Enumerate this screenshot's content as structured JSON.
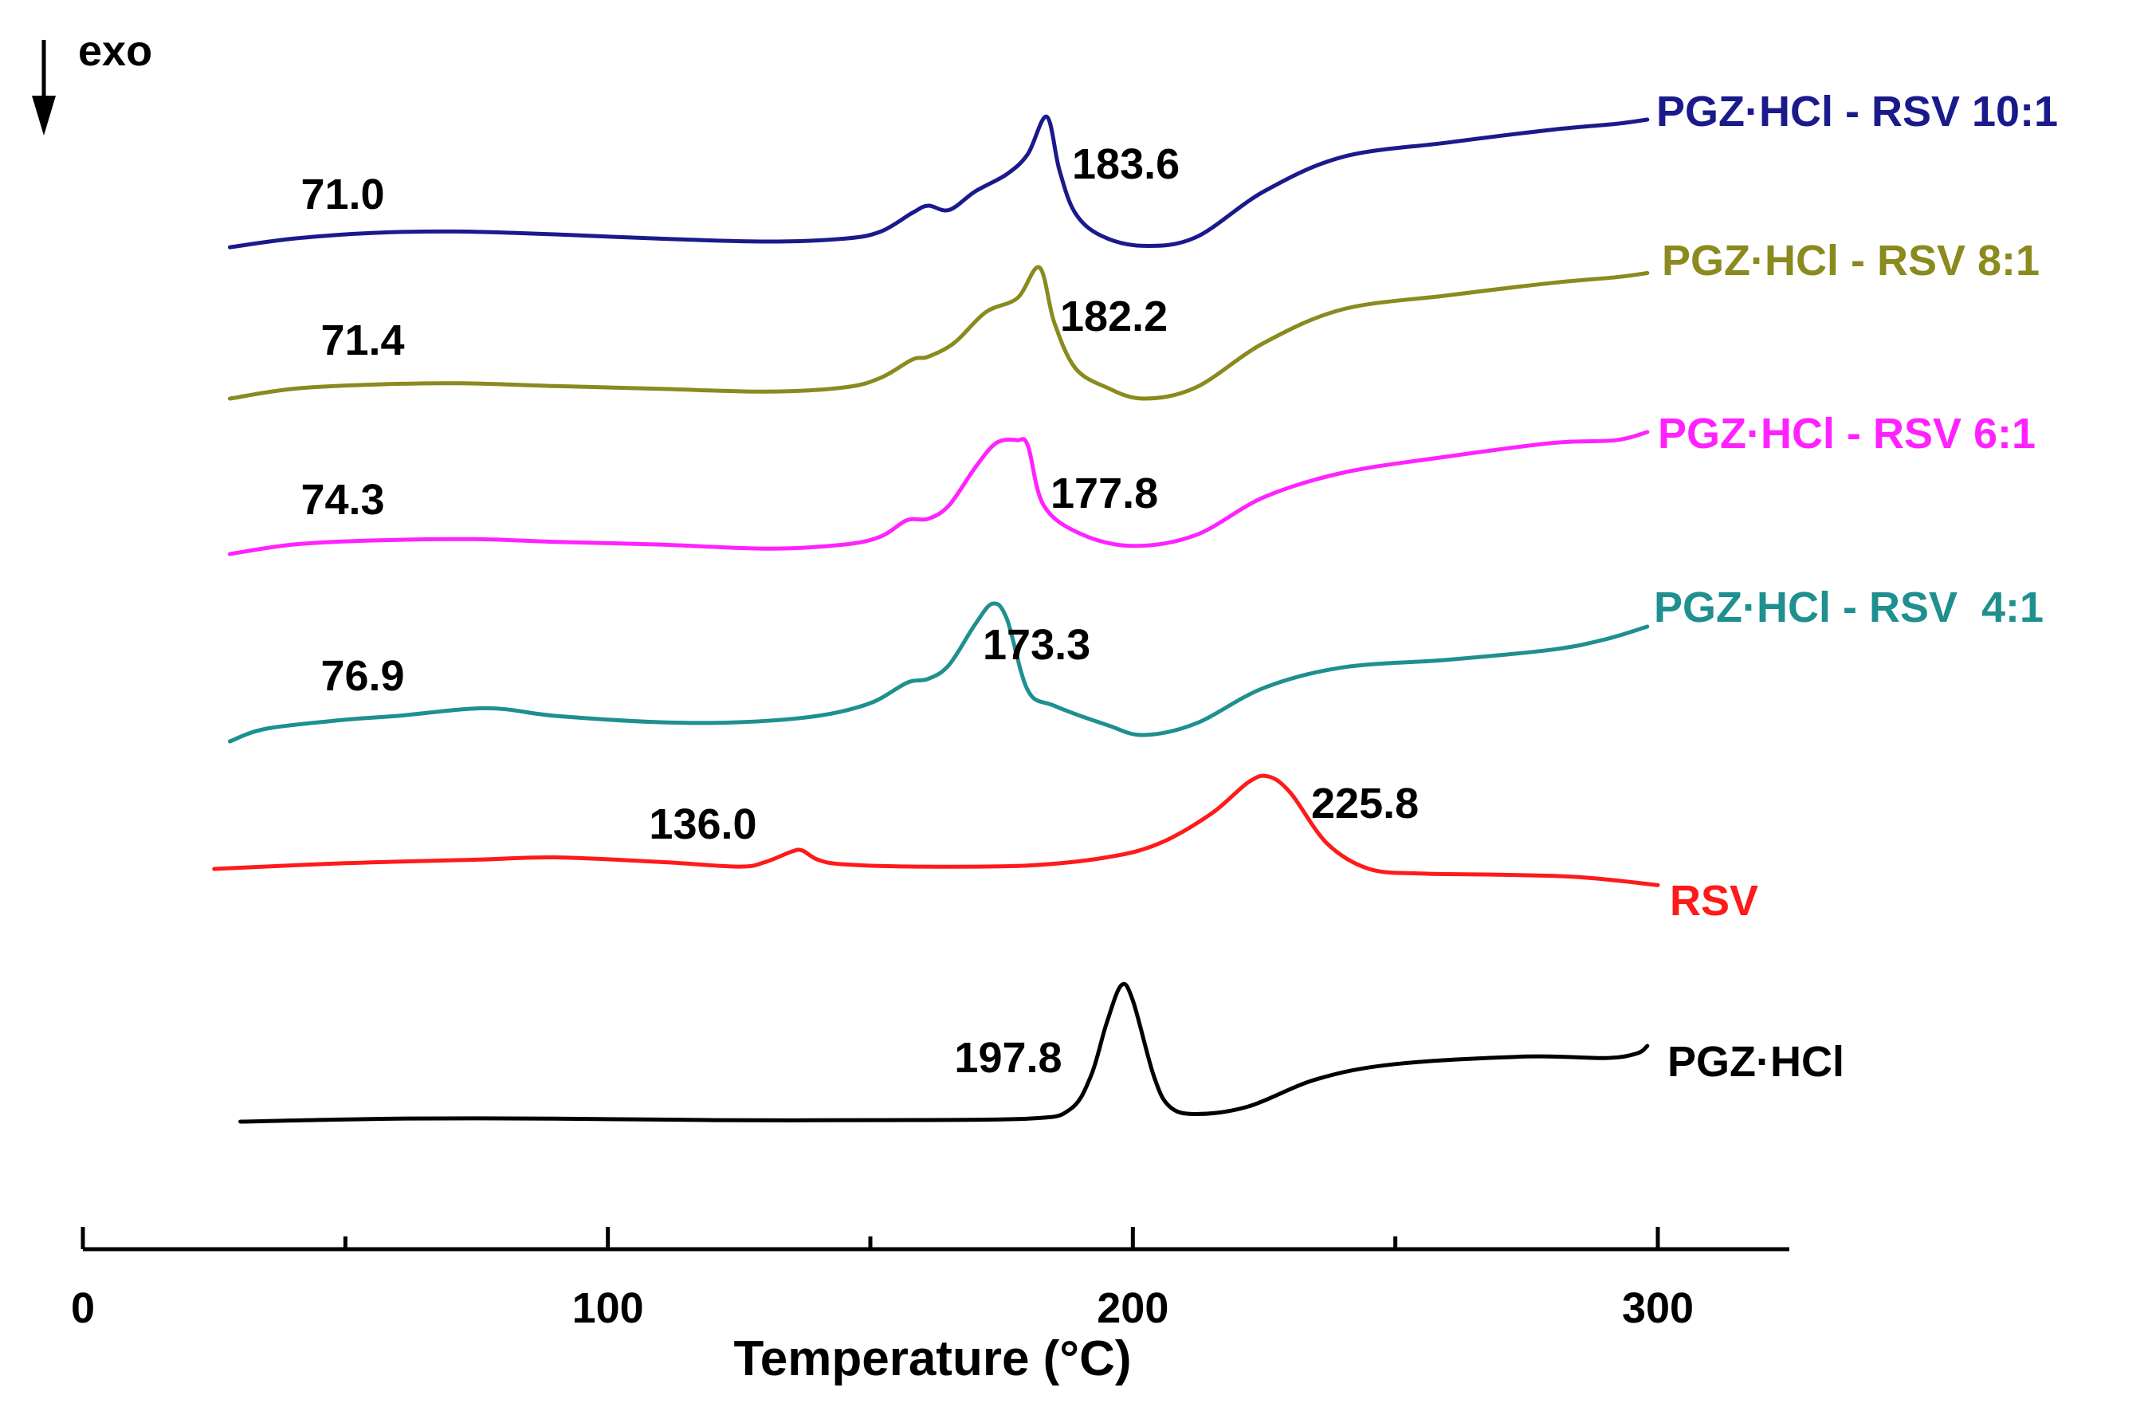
{
  "chart_data": {
    "type": "line",
    "title": "",
    "xlabel": "Temperature (°C)",
    "ylabel": "",
    "xlim": [
      0,
      325
    ],
    "x_ticks": [
      {
        "value": 0,
        "label": "0"
      },
      {
        "value": 100,
        "label": "100"
      },
      {
        "value": 200,
        "label": "200"
      },
      {
        "value": 300,
        "label": "300"
      }
    ],
    "x_minor_ticks": [
      50,
      150,
      250
    ],
    "exo_indicator": "exo",
    "series": [
      {
        "name": "PGZ·HCl - RSV 10:1",
        "color": "#1a1a8c",
        "offset": 0,
        "points": [
          [
            28,
            1.0
          ],
          [
            40,
            7
          ],
          [
            55,
            11
          ],
          [
            71,
            12
          ],
          [
            90,
            10
          ],
          [
            110,
            7
          ],
          [
            130,
            5
          ],
          [
            145,
            7
          ],
          [
            152,
            12
          ],
          [
            158,
            25
          ],
          [
            161,
            30
          ],
          [
            165,
            27
          ],
          [
            170,
            40
          ],
          [
            176,
            52
          ],
          [
            180,
            66
          ],
          [
            183.6,
            92
          ],
          [
            186,
            55
          ],
          [
            189,
            25
          ],
          [
            194,
            9
          ],
          [
            202,
            2
          ],
          [
            212,
            8
          ],
          [
            225,
            40
          ],
          [
            240,
            64
          ],
          [
            260,
            74
          ],
          [
            280,
            83
          ],
          [
            292,
            87
          ],
          [
            298,
            90
          ]
        ],
        "peak_labels": [
          {
            "text": "71.0",
            "t": 71.0
          },
          {
            "text": "183.6",
            "t": 183.6
          }
        ]
      },
      {
        "name": "PGZ·HCl - RSV 8:1",
        "color": "#8a8a1e",
        "offset": -196,
        "points": [
          [
            28,
            0
          ],
          [
            40,
            7
          ],
          [
            55,
            10
          ],
          [
            71.4,
            11
          ],
          [
            90,
            9
          ],
          [
            110,
            7
          ],
          [
            130,
            5
          ],
          [
            145,
            8
          ],
          [
            152,
            15
          ],
          [
            158,
            28
          ],
          [
            161,
            30
          ],
          [
            166,
            40
          ],
          [
            172,
            62
          ],
          [
            178,
            72
          ],
          [
            182.2,
            94
          ],
          [
            185,
            55
          ],
          [
            189,
            22
          ],
          [
            195,
            8
          ],
          [
            202,
            0
          ],
          [
            212,
            8
          ],
          [
            225,
            40
          ],
          [
            240,
            64
          ],
          [
            260,
            74
          ],
          [
            280,
            83
          ],
          [
            292,
            87
          ],
          [
            298,
            90
          ]
        ],
        "peak_labels": [
          {
            "text": "71.4",
            "t": 71.4
          },
          {
            "text": "182.2",
            "t": 182.2
          }
        ]
      },
      {
        "name": "PGZ·HCl - RSV 6:1",
        "color": "#ff22ff",
        "offset": -402,
        "points": [
          [
            28,
            0
          ],
          [
            40,
            7
          ],
          [
            55,
            10
          ],
          [
            74.3,
            11
          ],
          [
            90,
            9
          ],
          [
            110,
            7
          ],
          [
            130,
            4
          ],
          [
            145,
            7
          ],
          [
            152,
            13
          ],
          [
            157,
            25
          ],
          [
            161,
            26
          ],
          [
            165,
            36
          ],
          [
            170,
            64
          ],
          [
            174,
            82
          ],
          [
            178,
            84
          ],
          [
            180,
            80
          ],
          [
            183,
            36
          ],
          [
            190,
            15
          ],
          [
            200,
            6
          ],
          [
            212,
            14
          ],
          [
            225,
            42
          ],
          [
            240,
            60
          ],
          [
            260,
            72
          ],
          [
            280,
            82
          ],
          [
            292,
            84
          ],
          [
            298,
            90
          ]
        ],
        "peak_labels": [
          {
            "text": "74.3",
            "t": 74.3
          },
          {
            "text": "177.8",
            "t": 177.8
          }
        ]
      },
      {
        "name": "PGZ·HCl - RSV  4:1",
        "color": "#1f8f8f",
        "offset": -624,
        "points": [
          [
            28,
            0
          ],
          [
            35,
            10
          ],
          [
            50,
            17
          ],
          [
            60,
            20
          ],
          [
            76.9,
            26
          ],
          [
            90,
            20
          ],
          [
            110,
            15
          ],
          [
            125,
            15
          ],
          [
            140,
            20
          ],
          [
            150,
            30
          ],
          [
            157,
            46
          ],
          [
            161,
            49
          ],
          [
            165,
            60
          ],
          [
            170,
            92
          ],
          [
            173.3,
            108
          ],
          [
            176,
            96
          ],
          [
            180,
            40
          ],
          [
            185,
            28
          ],
          [
            195,
            13
          ],
          [
            202,
            5
          ],
          [
            212,
            14
          ],
          [
            225,
            42
          ],
          [
            240,
            58
          ],
          [
            260,
            64
          ],
          [
            280,
            72
          ],
          [
            290,
            80
          ],
          [
            298,
            90
          ]
        ],
        "peak_labels": [
          {
            "text": "76.9",
            "t": 76.9
          },
          {
            "text": "173.3",
            "t": 173.3
          }
        ]
      },
      {
        "name": "RSV",
        "color": "#ff1a1a",
        "offset": -788,
        "points": [
          [
            25,
            0
          ],
          [
            50,
            5
          ],
          [
            75,
            8
          ],
          [
            90,
            10
          ],
          [
            110,
            6
          ],
          [
            125,
            2
          ],
          [
            130,
            6
          ],
          [
            135,
            15
          ],
          [
            137,
            16
          ],
          [
            140,
            8
          ],
          [
            145,
            4
          ],
          [
            160,
            2
          ],
          [
            180,
            3
          ],
          [
            195,
            10
          ],
          [
            205,
            22
          ],
          [
            215,
            48
          ],
          [
            222,
            75
          ],
          [
            225.8,
            80
          ],
          [
            230,
            66
          ],
          [
            237,
            22
          ],
          [
            245,
            0
          ],
          [
            255,
            -4
          ],
          [
            270,
            -5
          ],
          [
            285,
            -7
          ],
          [
            300,
            -14
          ]
        ],
        "peak_labels": [
          {
            "text": "136.0",
            "t": 136.0
          },
          {
            "text": "225.8",
            "t": 225.8
          }
        ]
      },
      {
        "name": "PGZ·HCl",
        "color": "#000000",
        "offset": -1085,
        "points": [
          [
            30,
            0
          ],
          [
            60,
            2
          ],
          [
            90,
            2
          ],
          [
            120,
            1
          ],
          [
            150,
            1
          ],
          [
            180,
            2
          ],
          [
            188,
            8
          ],
          [
            192,
            30
          ],
          [
            195,
            65
          ],
          [
            197.8,
            90
          ],
          [
            200,
            80
          ],
          [
            204,
            30
          ],
          [
            207,
            10
          ],
          [
            212,
            5
          ],
          [
            222,
            10
          ],
          [
            235,
            28
          ],
          [
            250,
            38
          ],
          [
            275,
            43
          ],
          [
            290,
            42
          ],
          [
            296,
            45
          ],
          [
            298,
            50
          ]
        ],
        "peak_labels": [
          {
            "text": "197.8",
            "t": 197.8
          }
        ]
      }
    ]
  }
}
